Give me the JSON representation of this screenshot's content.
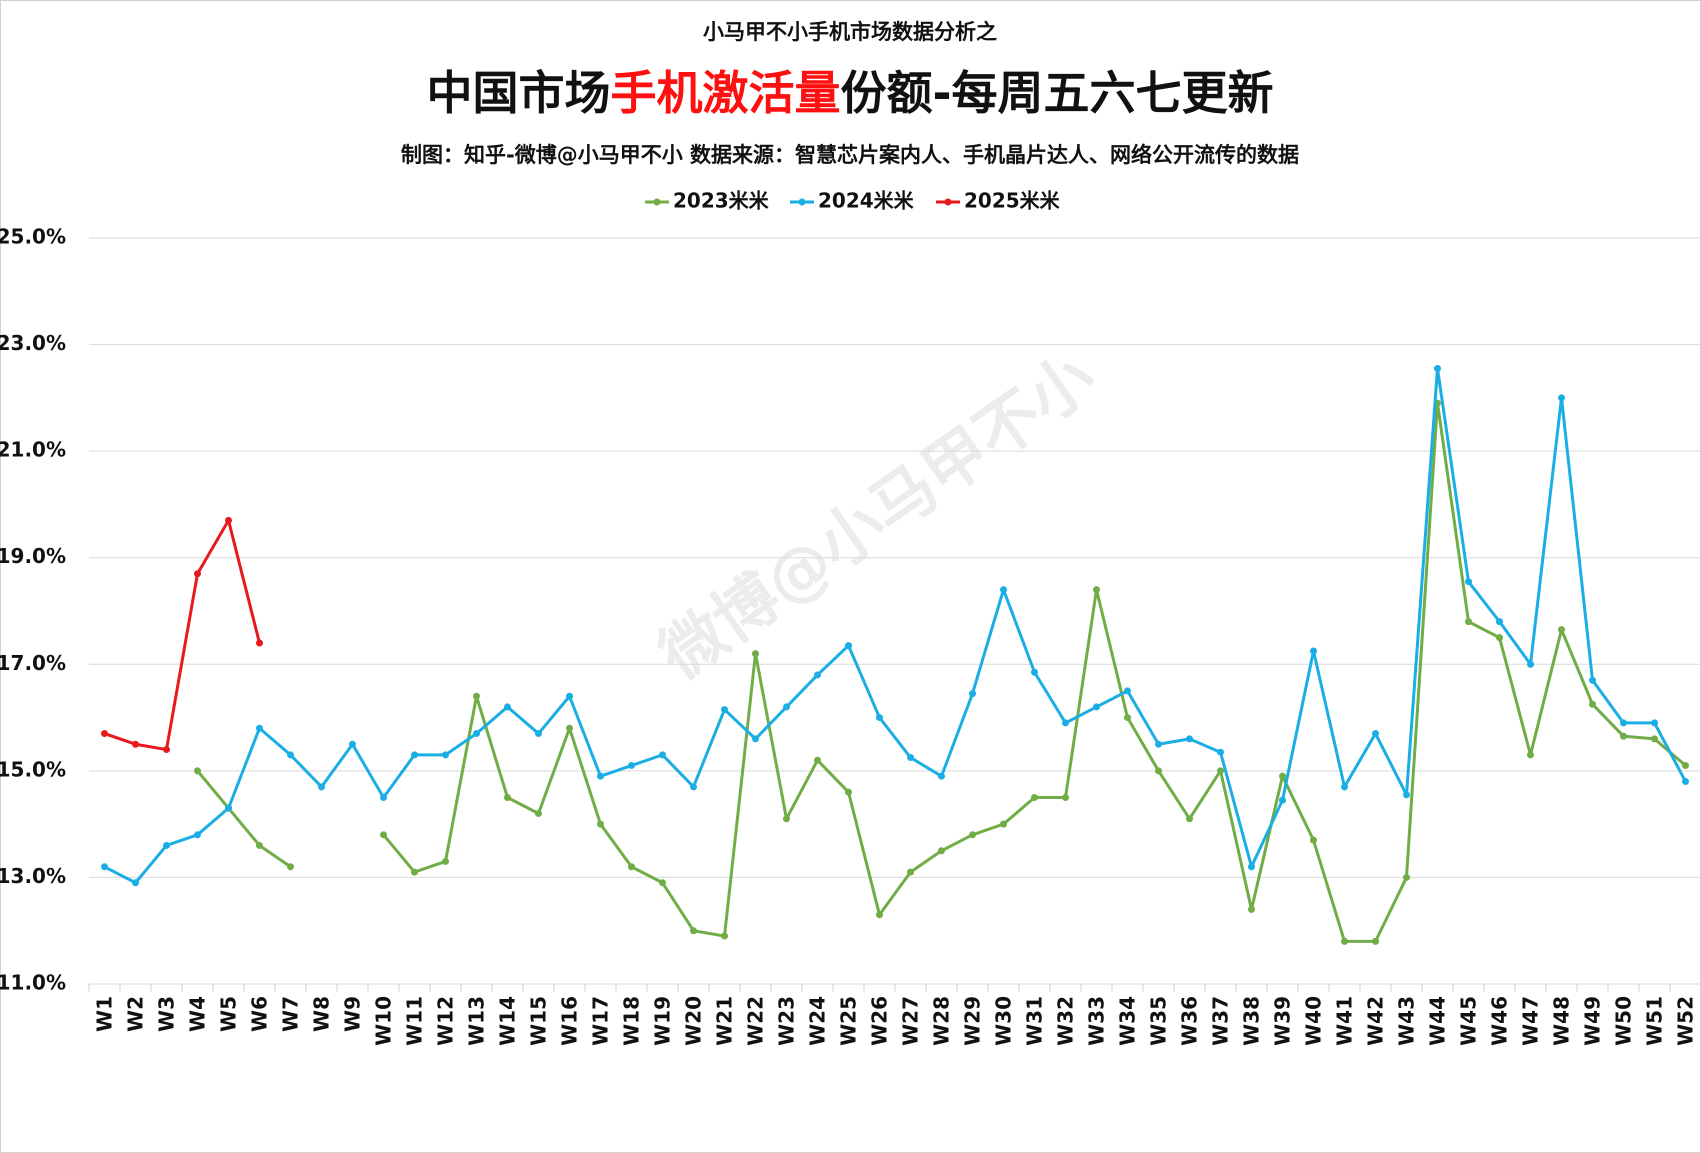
{
  "chart_data": {
    "type": "line",
    "subtitle": "小马甲不小手机市场数据分析之",
    "title_parts": [
      "中国市场",
      "手机激活量",
      "份额-每周五六七更新"
    ],
    "source": "制图：知乎-微博@小马甲不小  数据来源：智慧芯片案内人、手机晶片达人、网络公开流传的数据",
    "watermark": "微博@小马甲不小",
    "categories": [
      "W1",
      "W2",
      "W3",
      "W4",
      "W5",
      "W6",
      "W7",
      "W8",
      "W9",
      "W10",
      "W11",
      "W12",
      "W13",
      "W14",
      "W15",
      "W16",
      "W17",
      "W18",
      "W19",
      "W20",
      "W21",
      "W22",
      "W23",
      "W24",
      "W25",
      "W26",
      "W27",
      "W28",
      "W29",
      "W30",
      "W31",
      "W32",
      "W33",
      "W34",
      "W35",
      "W36",
      "W37",
      "W38",
      "W39",
      "W40",
      "W41",
      "W42",
      "W43",
      "W44",
      "W45",
      "W46",
      "W47",
      "W48",
      "W49",
      "W50",
      "W51",
      "W52"
    ],
    "series": [
      {
        "name": "2023米米",
        "color": "#70ad47",
        "values": [
          null,
          null,
          null,
          15.0,
          14.3,
          13.6,
          13.2,
          null,
          null,
          13.8,
          13.1,
          13.3,
          16.4,
          14.5,
          14.2,
          15.8,
          14.0,
          13.2,
          12.9,
          12.0,
          11.9,
          17.2,
          14.1,
          15.2,
          14.6,
          12.3,
          13.1,
          13.5,
          13.8,
          14.0,
          14.5,
          14.5,
          18.4,
          16.0,
          15.0,
          14.1,
          15.0,
          12.4,
          14.9,
          13.7,
          11.8,
          11.8,
          13.0,
          21.9,
          17.8,
          17.5,
          15.3,
          17.65,
          16.25,
          15.65,
          15.6,
          15.1
        ]
      },
      {
        "name": "2024米米",
        "color": "#1aaee5",
        "values": [
          13.2,
          12.9,
          13.6,
          13.8,
          14.3,
          15.8,
          15.3,
          14.7,
          15.5,
          14.5,
          15.3,
          15.3,
          15.7,
          16.2,
          15.7,
          16.4,
          14.9,
          15.1,
          15.3,
          14.7,
          16.15,
          15.6,
          16.2,
          16.8,
          17.35,
          16.0,
          15.25,
          14.9,
          16.45,
          18.4,
          16.85,
          15.9,
          16.2,
          16.5,
          15.5,
          15.6,
          15.35,
          13.2,
          14.45,
          17.25,
          14.7,
          15.7,
          14.55,
          22.55,
          18.55,
          17.8,
          17.0,
          22.0,
          16.7,
          15.9,
          15.9,
          14.8
        ]
      },
      {
        "name": "2025米米",
        "color": "#e8191c",
        "values": [
          15.7,
          15.5,
          15.4,
          18.7,
          19.7,
          17.4,
          null,
          null,
          null,
          null,
          null,
          null,
          null,
          null,
          null,
          null,
          null,
          null,
          null,
          null,
          null,
          null,
          null,
          null,
          null,
          null,
          null,
          null,
          null,
          null,
          null,
          null,
          null,
          null,
          null,
          null,
          null,
          null,
          null,
          null,
          null,
          null,
          null,
          null,
          null,
          null,
          null,
          null,
          null,
          null,
          null,
          null
        ]
      }
    ],
    "ylim": [
      11,
      25
    ],
    "yticks": [
      {
        "value": 11,
        "label": "11.0%"
      },
      {
        "value": 13,
        "label": "13.0%"
      },
      {
        "value": 15,
        "label": "15.0%"
      },
      {
        "value": 17,
        "label": "17.0%"
      },
      {
        "value": 19,
        "label": "19.0%"
      },
      {
        "value": 21,
        "label": "21.0%"
      },
      {
        "value": 23,
        "label": "23.0%"
      },
      {
        "value": 25,
        "label": "25.0%"
      }
    ],
    "grid": true
  }
}
